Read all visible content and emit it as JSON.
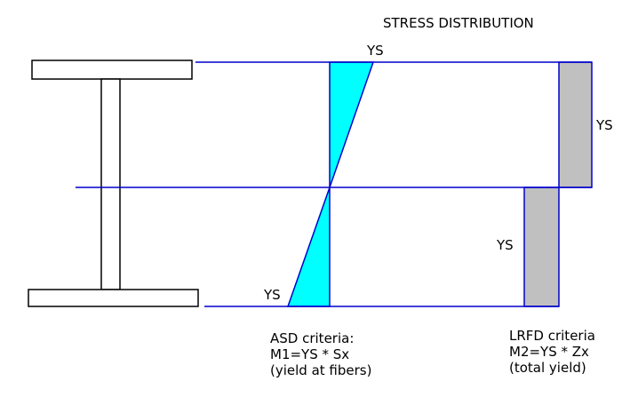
{
  "title": "STRESS DISTRIBUTION",
  "labels": {
    "asd_top": "YS",
    "asd_bottom": "YS",
    "lrfd_top": "YS",
    "lrfd_bottom": "YS"
  },
  "asd": {
    "heading": "ASD criteria:",
    "formula": "M1=YS * Sx",
    "note": "(yield at fibers)"
  },
  "lrfd": {
    "heading": "LRFD criteria",
    "formula": "M2=YS * Zx",
    "note": "(total yield)"
  },
  "colors": {
    "line": "#0000cc",
    "elastic_fill": "#00ffff",
    "plastic_fill": "#c0c0c0",
    "outline": "#000000"
  }
}
